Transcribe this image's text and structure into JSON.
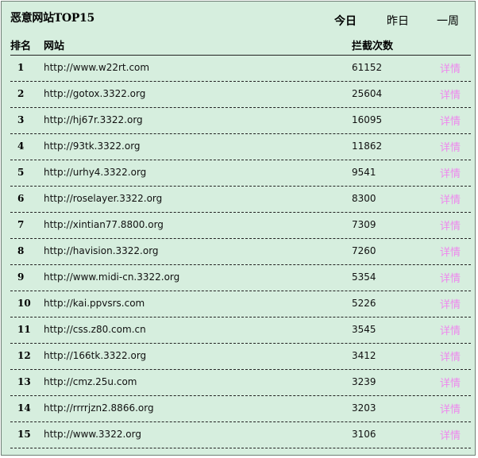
{
  "panel": {
    "title": "恶意网站TOP15"
  },
  "tabs": [
    {
      "label": "今日",
      "active": true
    },
    {
      "label": "昨日",
      "active": false
    },
    {
      "label": "一周",
      "active": false
    }
  ],
  "table": {
    "headers": {
      "rank": "排名",
      "site": "网站",
      "count": "拦截次数"
    },
    "detail_label": "详情",
    "rows": [
      {
        "rank": "1",
        "url": "http://www.w22rt.com",
        "count": "61152"
      },
      {
        "rank": "2",
        "url": "http://gotox.3322.org",
        "count": "25604"
      },
      {
        "rank": "3",
        "url": "http://hj67r.3322.org",
        "count": "16095"
      },
      {
        "rank": "4",
        "url": "http://93tk.3322.org",
        "count": "11862"
      },
      {
        "rank": "5",
        "url": "http://urhy4.3322.org",
        "count": "9541"
      },
      {
        "rank": "6",
        "url": "http://roselayer.3322.org",
        "count": "8300"
      },
      {
        "rank": "7",
        "url": "http://xintian77.8800.org",
        "count": "7309"
      },
      {
        "rank": "8",
        "url": "http://havision.3322.org",
        "count": "7260"
      },
      {
        "rank": "9",
        "url": "http://www.midi-cn.3322.org",
        "count": "5354"
      },
      {
        "rank": "10",
        "url": "http://kai.ppvsrs.com",
        "count": "5226"
      },
      {
        "rank": "11",
        "url": "http://css.z80.com.cn",
        "count": "3545"
      },
      {
        "rank": "12",
        "url": "http://166tk.3322.org",
        "count": "3412"
      },
      {
        "rank": "13",
        "url": "http://cmz.25u.com",
        "count": "3239"
      },
      {
        "rank": "14",
        "url": "http://rrrrjzn2.8866.org",
        "count": "3203"
      },
      {
        "rank": "15",
        "url": "http://www.3322.org",
        "count": "3106"
      }
    ]
  },
  "colors": {
    "panel_bg": "#d6eede",
    "detail_link": "#ee88ee"
  }
}
